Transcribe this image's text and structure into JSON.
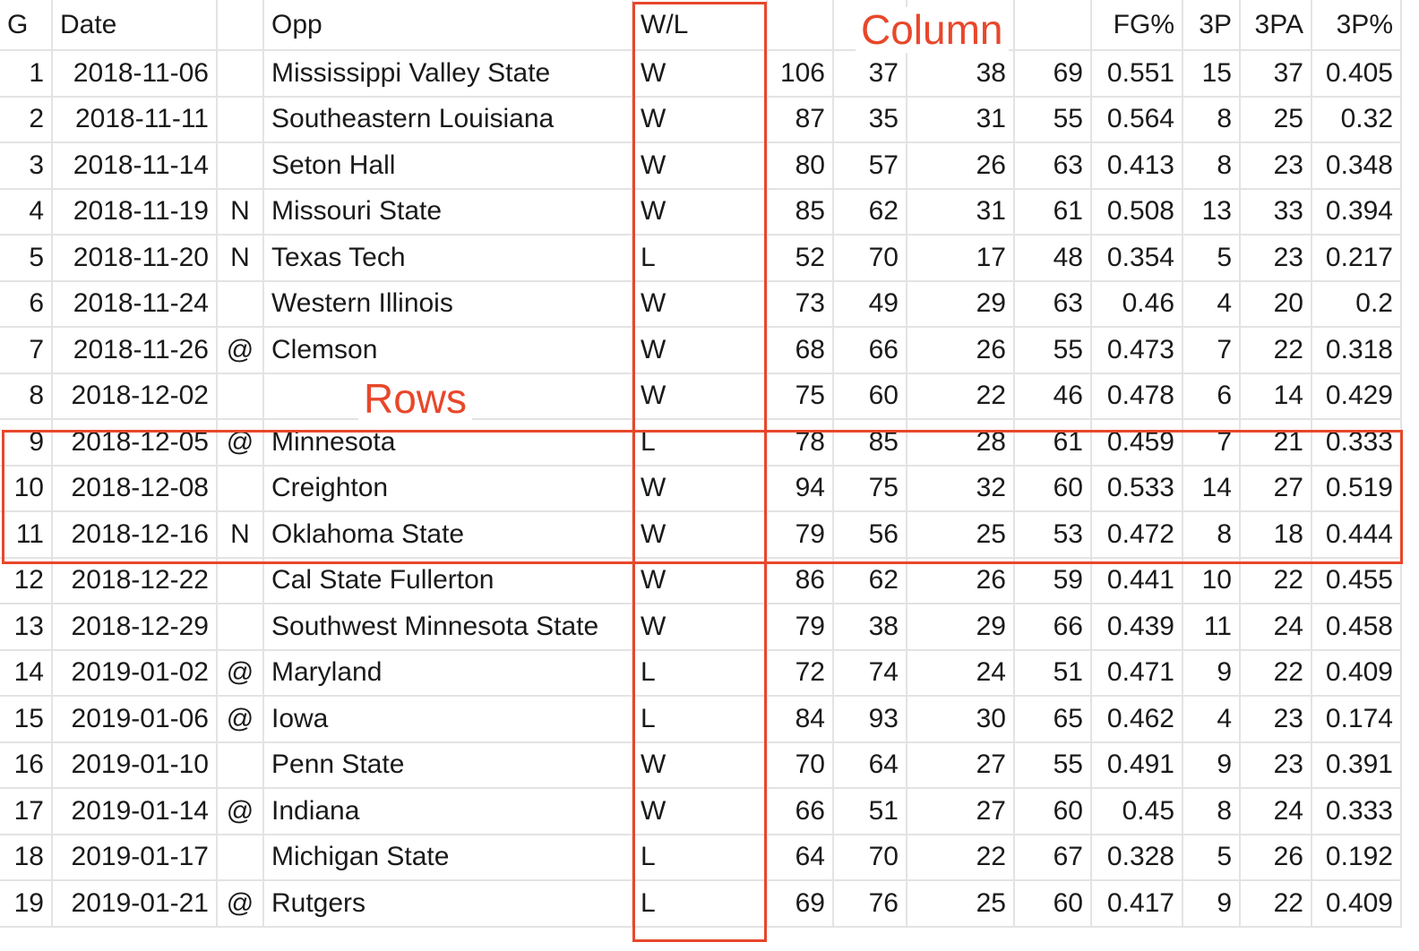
{
  "columns": [
    "G",
    "Date",
    "",
    "Opp",
    "W/L",
    "",
    "",
    "",
    "",
    "FG%",
    "3P",
    "3PA",
    "3P%"
  ],
  "rows": [
    [
      "1",
      "2018-11-06",
      "",
      "Mississippi Valley State",
      "W",
      "106",
      "37",
      "38",
      "69",
      "0.551",
      "15",
      "37",
      "0.405"
    ],
    [
      "2",
      "2018-11-11",
      "",
      "Southeastern Louisiana",
      "W",
      "87",
      "35",
      "31",
      "55",
      "0.564",
      "8",
      "25",
      "0.32"
    ],
    [
      "3",
      "2018-11-14",
      "",
      "Seton Hall",
      "W",
      "80",
      "57",
      "26",
      "63",
      "0.413",
      "8",
      "23",
      "0.348"
    ],
    [
      "4",
      "2018-11-19",
      "N",
      "Missouri State",
      "W",
      "85",
      "62",
      "31",
      "61",
      "0.508",
      "13",
      "33",
      "0.394"
    ],
    [
      "5",
      "2018-11-20",
      "N",
      "Texas Tech",
      "L",
      "52",
      "70",
      "17",
      "48",
      "0.354",
      "5",
      "23",
      "0.217"
    ],
    [
      "6",
      "2018-11-24",
      "",
      "Western Illinois",
      "W",
      "73",
      "49",
      "29",
      "63",
      "0.46",
      "4",
      "20",
      "0.2"
    ],
    [
      "7",
      "2018-11-26",
      "@",
      "Clemson",
      "W",
      "68",
      "66",
      "26",
      "55",
      "0.473",
      "7",
      "22",
      "0.318"
    ],
    [
      "8",
      "2018-12-02",
      "",
      "",
      "W",
      "75",
      "60",
      "22",
      "46",
      "0.478",
      "6",
      "14",
      "0.429"
    ],
    [
      "9",
      "2018-12-05",
      "@",
      "Minnesota",
      "L",
      "78",
      "85",
      "28",
      "61",
      "0.459",
      "7",
      "21",
      "0.333"
    ],
    [
      "10",
      "2018-12-08",
      "",
      "Creighton",
      "W",
      "94",
      "75",
      "32",
      "60",
      "0.533",
      "14",
      "27",
      "0.519"
    ],
    [
      "11",
      "2018-12-16",
      "N",
      "Oklahoma State",
      "W",
      "79",
      "56",
      "25",
      "53",
      "0.472",
      "8",
      "18",
      "0.444"
    ],
    [
      "12",
      "2018-12-22",
      "",
      "Cal State Fullerton",
      "W",
      "86",
      "62",
      "26",
      "59",
      "0.441",
      "10",
      "22",
      "0.455"
    ],
    [
      "13",
      "2018-12-29",
      "",
      "Southwest Minnesota State",
      "W",
      "79",
      "38",
      "29",
      "66",
      "0.439",
      "11",
      "24",
      "0.458"
    ],
    [
      "14",
      "2019-01-02",
      "@",
      "Maryland",
      "L",
      "72",
      "74",
      "24",
      "51",
      "0.471",
      "9",
      "22",
      "0.409"
    ],
    [
      "15",
      "2019-01-06",
      "@",
      "Iowa",
      "L",
      "84",
      "93",
      "30",
      "65",
      "0.462",
      "4",
      "23",
      "0.174"
    ],
    [
      "16",
      "2019-01-10",
      "",
      "Penn State",
      "W",
      "70",
      "64",
      "27",
      "55",
      "0.491",
      "9",
      "23",
      "0.391"
    ],
    [
      "17",
      "2019-01-14",
      "@",
      "Indiana",
      "W",
      "66",
      "51",
      "27",
      "60",
      "0.45",
      "8",
      "24",
      "0.333"
    ],
    [
      "18",
      "2019-01-17",
      "",
      "Michigan State",
      "L",
      "64",
      "70",
      "22",
      "67",
      "0.328",
      "5",
      "26",
      "0.192"
    ],
    [
      "19",
      "2019-01-21",
      "@",
      "Rutgers",
      "L",
      "69",
      "76",
      "25",
      "60",
      "0.417",
      "9",
      "22",
      "0.409"
    ]
  ],
  "annotations": {
    "column_label": "Column",
    "rows_label": "Rows",
    "color": "#e8472b"
  }
}
